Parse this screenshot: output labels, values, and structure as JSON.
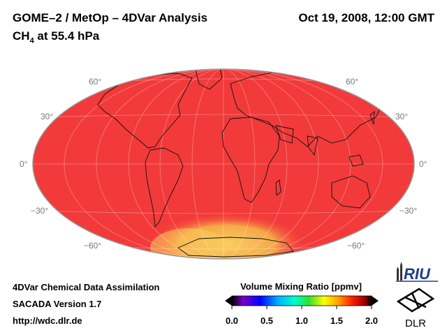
{
  "header": {
    "title": "GOME–2 / MetOp – 4DVar Analysis",
    "subtitle_prefix": "CH",
    "subtitle_sub": "4",
    "subtitle_suffix": " at 55.4 hPa",
    "datetime": "Oct 19, 2008, 12:00 GMT"
  },
  "map": {
    "projection": "Hammer-Aitoff",
    "variable": "CH4",
    "lat_labels_left": [
      "60°",
      "30°",
      "0°",
      "−30°",
      "−60°"
    ],
    "lat_labels_right": [
      "60°",
      "30°",
      "0°",
      "−30°",
      "−60°"
    ],
    "background_color": "#f23a3a",
    "low_region_color": "#f7c048"
  },
  "colorbar": {
    "title": "Volume Mixing Ratio [ppmv]",
    "ticks": [
      "0.0",
      "0.5",
      "1.0",
      "1.5",
      "2.0"
    ],
    "colors": [
      "#000000",
      "#7a00c8",
      "#0000ff",
      "#00b0ff",
      "#00ffcc",
      "#30e030",
      "#ffff00",
      "#ffa000",
      "#ff2000",
      "#a00000",
      "#000000"
    ]
  },
  "footer": {
    "line1": "4DVar Chemical Data Assimilation",
    "line2": "SACADA Version 1.7",
    "line3": "http://wdc.dlr.de"
  },
  "logos": {
    "riu": "RIU",
    "dlr": "DLR"
  }
}
